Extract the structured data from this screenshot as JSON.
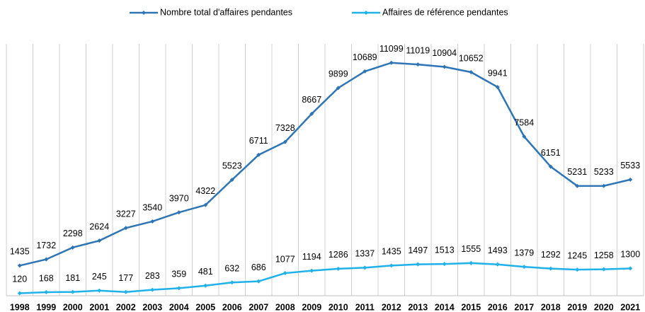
{
  "chart_data": {
    "type": "line",
    "categories": [
      "1998",
      "1999",
      "2000",
      "2001",
      "2002",
      "2003",
      "2004",
      "2005",
      "2006",
      "2007",
      "2008",
      "2009",
      "2010",
      "2011",
      "2012",
      "2013",
      "2014",
      "2015",
      "2016",
      "2017",
      "2018",
      "2019",
      "2020",
      "2021"
    ],
    "series": [
      {
        "name": "Nombre total d'affaires pendantes",
        "color": "#2e75b6",
        "values": [
          1435,
          1732,
          2298,
          2624,
          3227,
          3540,
          3970,
          4322,
          5523,
          6711,
          7328,
          8667,
          9899,
          10689,
          11099,
          11019,
          10904,
          10652,
          9941,
          7584,
          6151,
          5231,
          5233,
          5533
        ]
      },
      {
        "name": "Affaires de référence pendantes",
        "color": "#1fb1ea",
        "values": [
          120,
          168,
          181,
          245,
          177,
          283,
          359,
          481,
          632,
          686,
          1077,
          1194,
          1286,
          1337,
          1435,
          1497,
          1513,
          1555,
          1493,
          1379,
          1292,
          1245,
          1258,
          1300
        ]
      }
    ],
    "ylim": [
      0,
      12000
    ],
    "legend": "top",
    "grid": true
  }
}
